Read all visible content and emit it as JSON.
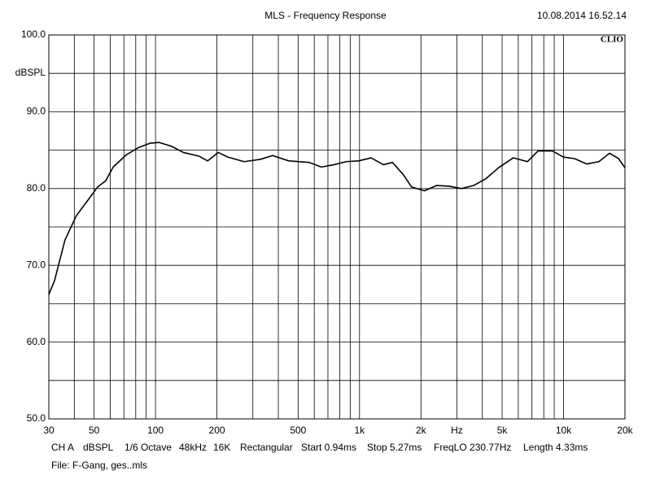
{
  "chart_data": {
    "type": "line",
    "title": "MLS - Frequency Response",
    "timestamp": "10.08.2014 16.52.14",
    "brand": "CLIO",
    "y_label": "dBSPL",
    "log_x": true,
    "grid": true,
    "color": "#000000",
    "x": [
      30,
      32,
      36,
      41,
      47,
      52,
      57,
      62,
      72,
      82,
      94,
      104,
      120,
      137,
      164,
      180,
      203,
      226,
      272,
      326,
      375,
      450,
      567,
      650,
      748,
      860,
      990,
      1140,
      1310,
      1450,
      1640,
      1800,
      2080,
      2390,
      2750,
      3160,
      3630,
      4170,
      4800,
      5670,
      6650,
      7500,
      8810,
      9980,
      11300,
      13000,
      14900,
      16800,
      18600,
      20000
    ],
    "values": [
      66.2,
      68,
      73.3,
      76.5,
      78.6,
      80.2,
      81,
      82.8,
      84.4,
      85.3,
      85.9,
      86,
      85.5,
      84.7,
      84.2,
      83.6,
      84.7,
      84.1,
      83.5,
      83.8,
      84.3,
      83.6,
      83.4,
      82.8,
      83.1,
      83.5,
      83.6,
      84,
      83.1,
      83.4,
      81.8,
      80.2,
      79.7,
      80.4,
      80.3,
      80,
      80.4,
      81.3,
      82.7,
      84,
      83.5,
      84.9,
      84.9,
      84.1,
      83.9,
      83.2,
      83.5,
      84.6,
      83.9,
      82.7
    ],
    "xlim": [
      30,
      20000
    ],
    "ylim": [
      50,
      100
    ],
    "xticks": [
      30,
      50,
      100,
      200,
      500,
      {
        "value": 1000,
        "label": "1k"
      },
      {
        "value": 2000,
        "label": "2k"
      },
      {
        "value": 3000,
        "label": "Hz"
      },
      {
        "value": 5000,
        "label": "5k"
      },
      {
        "value": 10000,
        "label": "10k"
      },
      {
        "value": 20000,
        "label": "20k"
      }
    ],
    "xminor": [
      40,
      60,
      70,
      80,
      90,
      300,
      400,
      600,
      700,
      800,
      900,
      4000,
      6000,
      7000,
      8000,
      9000
    ],
    "yticks": [
      {
        "value": 50,
        "label": "50.0"
      },
      {
        "value": 60,
        "label": "60.0"
      },
      {
        "value": 70,
        "label": "70.0"
      },
      {
        "value": 80,
        "label": "80.0"
      },
      {
        "value": 90,
        "label": "90.0"
      },
      {
        "value": 100,
        "label": "100.0"
      }
    ],
    "yminor": [
      55,
      65,
      75,
      85,
      95
    ],
    "info": [
      "CH A",
      "dBSPL",
      "1/6 Octave",
      "48kHz",
      "16K",
      "Rectangular",
      "Start 0.94ms",
      "Stop 5.27ms",
      "FreqLO 230.77Hz",
      "Length 4.33ms"
    ],
    "file": "File: F-Gang, ges..mls"
  }
}
